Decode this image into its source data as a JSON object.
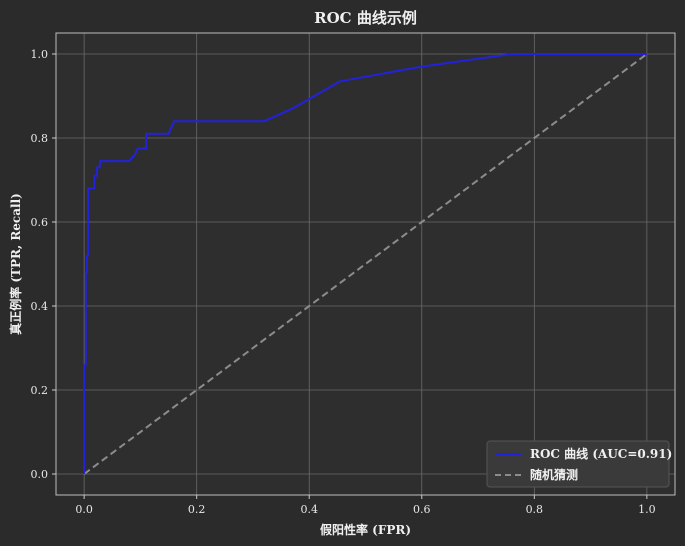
{
  "chart_data": {
    "type": "line",
    "title": "ROC 曲线示例",
    "xlabel": "假阳性率 (FPR)",
    "ylabel": "真正例率 (TPR, Recall)",
    "xlim": [
      -0.05,
      1.05
    ],
    "ylim": [
      -0.05,
      1.05
    ],
    "xticks": [
      "0.0",
      "0.2",
      "0.4",
      "0.6",
      "0.8",
      "1.0"
    ],
    "yticks": [
      "0.0",
      "0.2",
      "0.4",
      "0.6",
      "0.8",
      "1.0"
    ],
    "grid": true,
    "legend_position": "lower-right",
    "series": [
      {
        "name": "ROC 曲线 (AUC=0.91)",
        "color": "#2222dd",
        "style": "solid",
        "x": [
          0.0,
          0.0,
          0.003,
          0.003,
          0.005,
          0.005,
          0.007,
          0.007,
          0.01,
          0.01,
          0.018,
          0.018,
          0.023,
          0.023,
          0.028,
          0.028,
          0.08,
          0.09,
          0.095,
          0.11,
          0.11,
          0.15,
          0.16,
          0.16,
          0.32,
          0.37,
          0.455,
          0.6,
          0.76,
          1.0
        ],
        "y": [
          0.0,
          0.26,
          0.26,
          0.48,
          0.48,
          0.52,
          0.52,
          0.68,
          0.68,
          0.68,
          0.68,
          0.71,
          0.71,
          0.73,
          0.73,
          0.745,
          0.745,
          0.76,
          0.775,
          0.775,
          0.81,
          0.81,
          0.84,
          0.84,
          0.84,
          0.87,
          0.935,
          0.97,
          1.0,
          1.0
        ]
      },
      {
        "name": "随机猜测",
        "color": "#8c8c8c",
        "style": "dashed",
        "x": [
          0.0,
          1.0
        ],
        "y": [
          0.0,
          1.0
        ]
      }
    ]
  }
}
